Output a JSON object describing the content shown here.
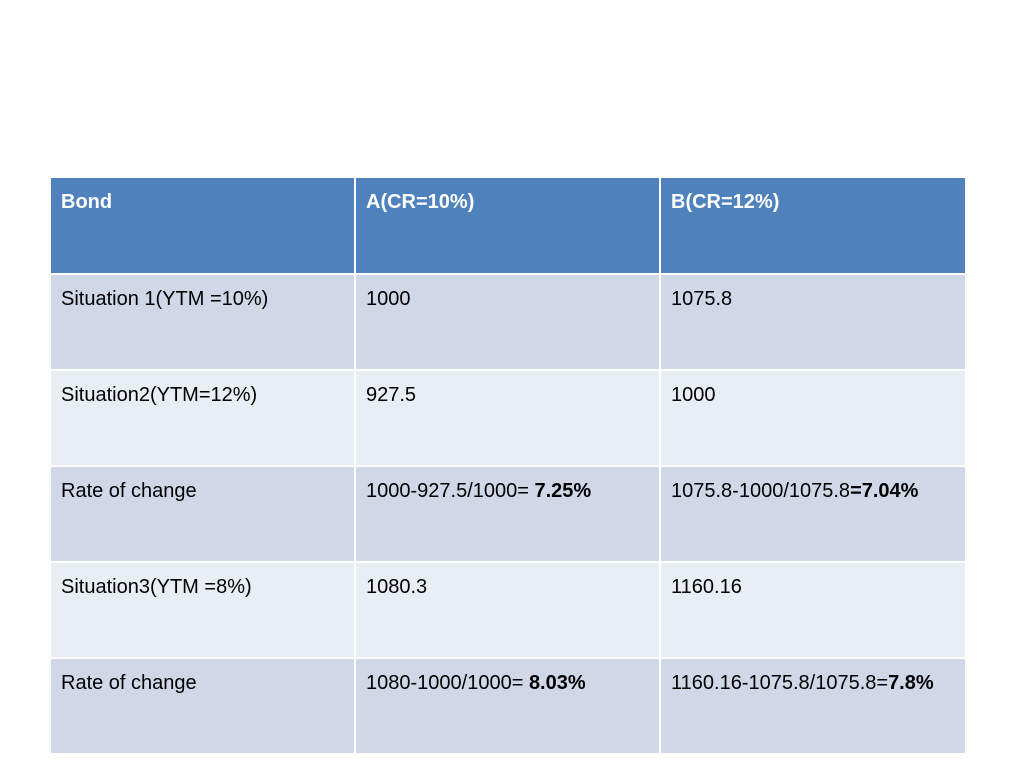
{
  "table": {
    "headers": [
      "Bond",
      "A(CR=10%)",
      "B(CR=12%)"
    ],
    "rows": [
      {
        "label": "Situation 1(YTM =10%)",
        "a": {
          "text": "1000",
          "bold": ""
        },
        "b": {
          "text": "1075.8",
          "bold": ""
        }
      },
      {
        "label": "Situation2(YTM=12%)",
        "a": {
          "text": "927.5",
          "bold": ""
        },
        "b": {
          "text": "1000",
          "bold": ""
        }
      },
      {
        "label": "Rate of change",
        "a": {
          "text": "1000-927.5/1000= ",
          "bold": "7.25%"
        },
        "b": {
          "text": "1075.8-1000/1075.8",
          "bold": "=7.04%"
        }
      },
      {
        "label": "Situation3(YTM =8%)",
        "a": {
          "text": "1080.3",
          "bold": ""
        },
        "b": {
          "text": "1160.16",
          "bold": ""
        }
      },
      {
        "label": "Rate of change",
        "a": {
          "text": "1080-1000/1000= ",
          "bold": "8.03%"
        },
        "b": {
          "text": "1160.16-1075.8/1075.8=",
          "bold": "7.8%"
        }
      }
    ]
  }
}
